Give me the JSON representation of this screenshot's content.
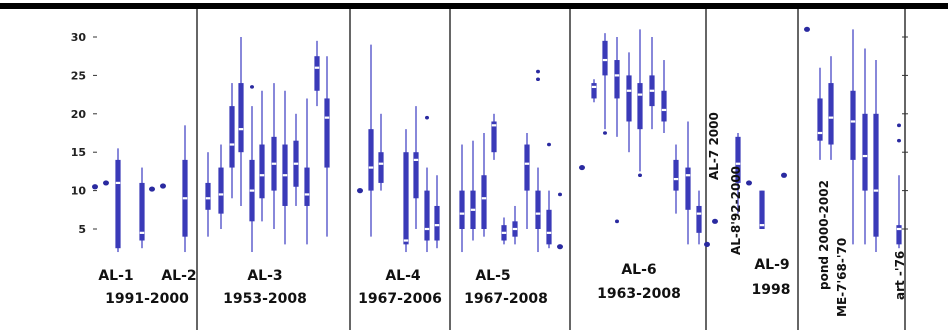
{
  "chart_data": {
    "type": "box",
    "title": "",
    "xlabel": "",
    "ylabel": "",
    "ylim": [
      1,
      33
    ],
    "yticks": [
      5,
      10,
      15,
      20,
      25,
      30
    ],
    "grid": false,
    "colors": {
      "box": "#3a3ab8",
      "whisker": "#6a6ad0",
      "median": "#ffffff",
      "outlier": "#2a2aa0",
      "panel_line": "#000000"
    },
    "groups": [
      {
        "label_lines": [
          "AL-1",
          "1991-2000"
        ],
        "label_orientation": "horizontal",
        "boxes": [
          {
            "med": 10.5,
            "min": 10.2,
            "max": 11.0,
            "q1": 10.3,
            "q3": 10.8,
            "type": "point"
          },
          {
            "med": 11.0,
            "min": 10.6,
            "max": 11.6,
            "q1": 10.8,
            "q3": 11.3,
            "type": "point"
          },
          {
            "med": 11.0,
            "min": 2.0,
            "max": 15.5,
            "q1": 2.5,
            "q3": 14.0,
            "type": "box"
          }
        ]
      },
      {
        "label_lines": [
          "AL-2"
        ],
        "label_orientation": "horizontal",
        "boxes": [
          {
            "med": 4.5,
            "min": 2.5,
            "max": 13.0,
            "q1": 3.5,
            "q3": 11.0,
            "type": "box"
          },
          {
            "med": 10.2,
            "min": 10.0,
            "max": 10.4,
            "q1": 10.1,
            "q3": 10.3,
            "type": "point"
          },
          {
            "med": 10.6,
            "min": 10.3,
            "max": 11.0,
            "q1": 10.4,
            "q3": 10.8,
            "type": "point"
          },
          {
            "med": 9.0,
            "min": 2.0,
            "max": 18.5,
            "q1": 4.0,
            "q3": 14.0,
            "type": "box"
          }
        ]
      },
      {
        "label_lines": [
          "AL-3",
          "1953-2008"
        ],
        "label_orientation": "horizontal",
        "boxes": [
          {
            "med": 9.0,
            "min": 4.0,
            "max": 15.0,
            "q1": 7.5,
            "q3": 11.0,
            "type": "box"
          },
          {
            "med": 9.5,
            "min": 5.0,
            "max": 16.0,
            "q1": 7.0,
            "q3": 13.0,
            "type": "box"
          },
          {
            "med": 16.0,
            "min": 9.0,
            "max": 24.0,
            "q1": 13.0,
            "q3": 21.0,
            "type": "box"
          },
          {
            "med": 18.0,
            "min": 8.0,
            "max": 30.0,
            "q1": 15.0,
            "q3": 24.0,
            "type": "box"
          },
          {
            "med": 10.0,
            "min": 2.0,
            "max": 21.0,
            "q1": 6.0,
            "q3": 14.0,
            "type": "box",
            "outliers": [
              23.5
            ]
          },
          {
            "med": 12.0,
            "min": 6.0,
            "max": 23.0,
            "q1": 9.0,
            "q3": 16.0,
            "type": "box"
          },
          {
            "med": 13.5,
            "min": 5.0,
            "max": 24.0,
            "q1": 10.0,
            "q3": 17.0,
            "type": "box"
          },
          {
            "med": 12.0,
            "min": 3.0,
            "max": 23.0,
            "q1": 8.0,
            "q3": 16.0,
            "type": "box"
          },
          {
            "med": 13.5,
            "min": 8.0,
            "max": 20.0,
            "q1": 10.5,
            "q3": 16.5,
            "type": "box"
          },
          {
            "med": 9.5,
            "min": 3.0,
            "max": 22.0,
            "q1": 8.0,
            "q3": 13.0,
            "type": "box"
          },
          {
            "med": 26.0,
            "min": 21.0,
            "max": 29.5,
            "q1": 23.0,
            "q3": 27.5,
            "type": "box"
          },
          {
            "med": 19.5,
            "min": 4.0,
            "max": 27.5,
            "q1": 13.0,
            "q3": 22.0,
            "type": "box"
          }
        ]
      },
      {
        "label_lines": [
          "AL-4",
          "1967-2006"
        ],
        "label_orientation": "horizontal",
        "boxes": [
          {
            "med": 10.0,
            "min": 9.7,
            "max": 10.3,
            "q1": 9.8,
            "q3": 10.2,
            "type": "point"
          },
          {
            "med": 13.0,
            "min": 4.0,
            "max": 29.0,
            "q1": 10.0,
            "q3": 18.0,
            "type": "box"
          },
          {
            "med": 13.5,
            "min": 10.0,
            "max": 20.0,
            "q1": 11.0,
            "q3": 15.0,
            "type": "box"
          },
          {
            "med": 3.5,
            "min": 2.0,
            "max": 18.0,
            "q1": 3.0,
            "q3": 15.0,
            "type": "box"
          },
          {
            "med": 14.0,
            "min": 5.0,
            "max": 21.0,
            "q1": 9.0,
            "q3": 15.0,
            "type": "box"
          },
          {
            "med": 5.0,
            "min": 2.0,
            "max": 13.0,
            "q1": 3.5,
            "q3": 10.0,
            "type": "box",
            "outliers": [
              19.5
            ]
          },
          {
            "med": 5.5,
            "min": 2.5,
            "max": 12.0,
            "q1": 3.5,
            "q3": 8.0,
            "type": "box"
          }
        ]
      },
      {
        "label_lines": [
          "AL-5",
          "1967-2008"
        ],
        "label_orientation": "horizontal",
        "boxes": [
          {
            "med": 7.0,
            "min": 2.0,
            "max": 16.0,
            "q1": 5.0,
            "q3": 10.0,
            "type": "box"
          },
          {
            "med": 7.5,
            "min": 3.5,
            "max": 16.5,
            "q1": 5.0,
            "q3": 10.0,
            "type": "box"
          },
          {
            "med": 9.0,
            "min": 4.0,
            "max": 17.5,
            "q1": 5.0,
            "q3": 12.0,
            "type": "box"
          },
          {
            "med": 18.5,
            "min": 14.0,
            "max": 20.0,
            "q1": 15.0,
            "q3": 19.0,
            "type": "box"
          },
          {
            "med": 4.5,
            "min": 3.0,
            "max": 6.5,
            "q1": 3.5,
            "q3": 5.5,
            "type": "box"
          },
          {
            "med": 5.0,
            "min": 3.0,
            "max": 8.0,
            "q1": 4.0,
            "q3": 6.0,
            "type": "box"
          },
          {
            "med": 13.5,
            "min": 5.0,
            "max": 17.5,
            "q1": 10.0,
            "q3": 16.0,
            "type": "box"
          },
          {
            "med": 7.0,
            "min": 2.0,
            "max": 13.0,
            "q1": 5.0,
            "q3": 10.0,
            "type": "box",
            "outliers": [
              25.5,
              24.5
            ]
          },
          {
            "med": 4.5,
            "min": 2.5,
            "max": 10.0,
            "q1": 3.0,
            "q3": 7.5,
            "type": "box",
            "outliers": [
              16.0
            ]
          },
          {
            "med": 2.7,
            "min": 2.4,
            "max": 3.0,
            "q1": 2.5,
            "q3": 2.9,
            "type": "point",
            "outliers": [
              9.5
            ]
          }
        ]
      },
      {
        "label_lines": [
          "AL-6",
          "1963-2008"
        ],
        "label_orientation": "horizontal",
        "boxes": [
          {
            "med": 13.0,
            "min": 12.7,
            "max": 13.3,
            "q1": 12.8,
            "q3": 13.2,
            "type": "point"
          },
          {
            "med": 23.5,
            "min": 21.5,
            "max": 24.5,
            "q1": 22.0,
            "q3": 24.0,
            "type": "box"
          },
          {
            "med": 27.0,
            "min": 18.0,
            "max": 30.5,
            "q1": 25.0,
            "q3": 29.5,
            "type": "box",
            "outliers": [
              17.5
            ]
          },
          {
            "med": 25.0,
            "min": 17.0,
            "max": 30.0,
            "q1": 22.0,
            "q3": 27.0,
            "type": "box",
            "outliers": [
              6.0
            ]
          },
          {
            "med": 23.0,
            "min": 15.0,
            "max": 28.0,
            "q1": 19.0,
            "q3": 25.0,
            "type": "box"
          },
          {
            "med": 22.5,
            "min": 12.5,
            "max": 31.0,
            "q1": 18.0,
            "q3": 24.0,
            "type": "box",
            "outliers": [
              12.0
            ]
          },
          {
            "med": 23.0,
            "min": 18.0,
            "max": 30.0,
            "q1": 21.0,
            "q3": 25.0,
            "type": "box"
          },
          {
            "med": 20.5,
            "min": 17.5,
            "max": 27.0,
            "q1": 19.0,
            "q3": 23.0,
            "type": "box"
          },
          {
            "med": 11.5,
            "min": 7.0,
            "max": 16.0,
            "q1": 10.0,
            "q3": 14.0,
            "type": "box"
          },
          {
            "med": 12.0,
            "min": 3.0,
            "max": 19.0,
            "q1": 7.5,
            "q3": 13.0,
            "type": "box"
          },
          {
            "med": 7.0,
            "min": 3.0,
            "max": 10.0,
            "q1": 4.5,
            "q3": 8.0,
            "type": "box"
          },
          {
            "med": 3.0,
            "min": 2.7,
            "max": 3.3,
            "q1": 2.8,
            "q3": 3.2,
            "type": "point"
          }
        ]
      },
      {
        "label_lines": [
          "AL-7 2000"
        ],
        "label_orientation": "vertical",
        "boxes": [
          {
            "med": 6.0,
            "min": 5.7,
            "max": 6.3,
            "q1": 5.8,
            "q3": 6.2,
            "type": "point"
          }
        ]
      },
      {
        "label_lines": [
          "AL-8'92-2000"
        ],
        "label_orientation": "vertical",
        "boxes": [
          {
            "med": 13.5,
            "min": 7.0,
            "max": 17.5,
            "q1": 11.0,
            "q3": 17.0,
            "type": "box"
          },
          {
            "med": 11.0,
            "min": 10.7,
            "max": 11.3,
            "q1": 10.8,
            "q3": 11.2,
            "type": "point"
          }
        ]
      },
      {
        "label_lines": [
          "AL-9",
          "1998"
        ],
        "label_orientation": "horizontal",
        "boxes": [
          {
            "med": 5.5,
            "min": 5.0,
            "max": 10.0,
            "q1": 5.0,
            "q3": 10.0,
            "type": "box"
          },
          {
            "med": 12.0,
            "min": 11.7,
            "max": 12.3,
            "q1": 11.8,
            "q3": 12.2,
            "type": "point"
          }
        ]
      },
      {
        "label_lines": [
          "pond 2000-2002"
        ],
        "label_orientation": "vertical",
        "boxes": [
          {
            "med": 31.0,
            "min": 30.7,
            "max": 31.3,
            "q1": 30.8,
            "q3": 31.2,
            "type": "point"
          },
          {
            "med": 17.5,
            "min": 14.0,
            "max": 26.0,
            "q1": 16.5,
            "q3": 22.0,
            "type": "box"
          },
          {
            "med": 19.5,
            "min": 14.0,
            "max": 27.5,
            "q1": 16.0,
            "q3": 24.0,
            "type": "box"
          }
        ]
      },
      {
        "label_lines": [
          "ME-7'68-'70"
        ],
        "label_orientation": "vertical",
        "boxes": [
          {
            "med": 19.0,
            "min": 3.0,
            "max": 31.0,
            "q1": 14.0,
            "q3": 23.0,
            "type": "box"
          },
          {
            "med": 14.5,
            "min": 3.0,
            "max": 28.5,
            "q1": 10.0,
            "q3": 20.0,
            "type": "box"
          },
          {
            "med": 10.0,
            "min": 2.0,
            "max": 27.0,
            "q1": 4.0,
            "q3": 20.0,
            "type": "box"
          }
        ]
      },
      {
        "label_lines": [
          "art -'76"
        ],
        "label_orientation": "vertical",
        "boxes": [
          {
            "med": 5.0,
            "min": 2.5,
            "max": 12.0,
            "q1": 3.0,
            "q3": 5.5,
            "type": "box",
            "outliers": [
              18.5,
              16.5
            ]
          }
        ]
      }
    ]
  }
}
